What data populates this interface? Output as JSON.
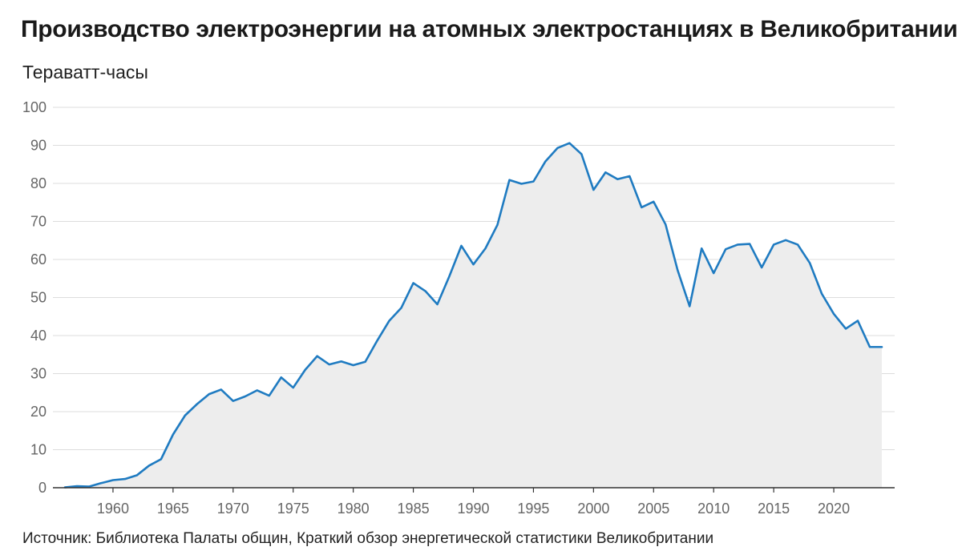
{
  "chart_data": {
    "type": "area",
    "title": "Производство электроэнергии на атомных электростанциях в Великобритании",
    "ylabel": "Тераватт-часы",
    "xlabel": "",
    "source": "Источник: Библиотека Палаты общин, Краткий обзор энергетической статистики Великобритании",
    "ylim": [
      0,
      100
    ],
    "xlim": [
      1956,
      2024
    ],
    "yticks": [
      0,
      10,
      20,
      30,
      40,
      50,
      60,
      70,
      80,
      90,
      100
    ],
    "xticks": [
      1960,
      1965,
      1970,
      1975,
      1980,
      1985,
      1990,
      1995,
      2000,
      2005,
      2010,
      2015,
      2020
    ],
    "grid": true,
    "colors": {
      "line": "#1f7bc1",
      "fill": "#ededed",
      "grid": "#dddddd",
      "axis": "#333333"
    },
    "x": [
      1956,
      1957,
      1958,
      1959,
      1960,
      1961,
      1962,
      1963,
      1964,
      1965,
      1966,
      1967,
      1968,
      1969,
      1970,
      1971,
      1972,
      1973,
      1974,
      1975,
      1976,
      1977,
      1978,
      1979,
      1980,
      1981,
      1982,
      1983,
      1984,
      1985,
      1986,
      1987,
      1988,
      1989,
      1990,
      1991,
      1992,
      1993,
      1994,
      1995,
      1996,
      1997,
      1998,
      1999,
      2000,
      2001,
      2002,
      2003,
      2004,
      2005,
      2006,
      2007,
      2008,
      2009,
      2010,
      2011,
      2012,
      2013,
      2014,
      2015,
      2016,
      2017,
      2018,
      2019,
      2020,
      2021,
      2022,
      2023,
      2024
    ],
    "values": [
      0.1,
      0.4,
      0.3,
      1.2,
      2.0,
      2.3,
      3.3,
      5.8,
      7.5,
      14,
      19,
      22,
      24.6,
      25.8,
      22.8,
      24,
      25.6,
      24.2,
      29,
      26.3,
      31,
      34.6,
      32.4,
      33.2,
      32.2,
      33.1,
      38.7,
      43.9,
      47.3,
      53.8,
      51.7,
      48.2,
      55.6,
      63.6,
      58.7,
      62.9,
      69.1,
      80.9,
      79.9,
      80.5,
      85.8,
      89.3,
      90.6,
      87.7,
      78.3,
      82.9,
      81.1,
      81.9,
      73.7,
      75.2,
      69.2,
      57.2,
      47.7,
      62.9,
      56.4,
      62.7,
      63.9,
      64.1,
      57.9,
      63.9,
      65.1,
      63.9,
      59.1,
      51.0,
      45.7,
      41.8,
      43.9,
      37.0,
      37.0
    ]
  }
}
